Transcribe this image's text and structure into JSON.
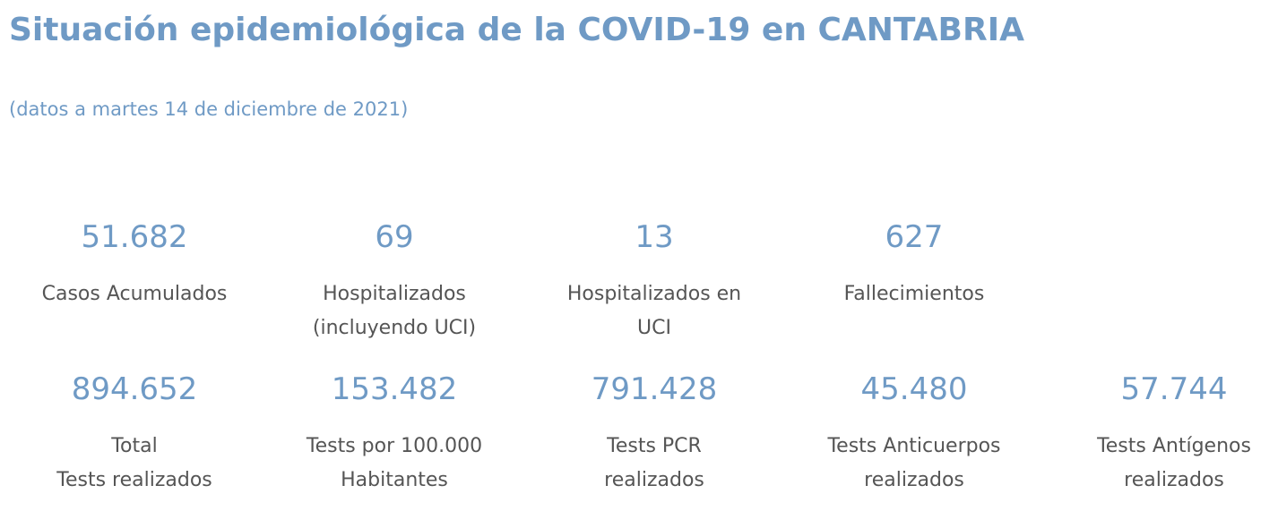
{
  "header": {
    "title": "Situación epidemiológica de la COVID-19 en CANTABRIA",
    "subtitle": "(datos a martes 14 de diciembre de 2021)"
  },
  "stats_row1": [
    {
      "value": "51.682",
      "label_lines": [
        "Casos Acumulados"
      ]
    },
    {
      "value": "69",
      "label_lines": [
        "Hospitalizados",
        "(incluyendo UCI)"
      ]
    },
    {
      "value": "13",
      "label_lines": [
        "Hospitalizados en",
        "UCI"
      ]
    },
    {
      "value": "627",
      "label_lines": [
        "Fallecimientos"
      ]
    }
  ],
  "stats_row2": [
    {
      "value": "894.652",
      "label_lines": [
        "Total",
        "Tests realizados"
      ]
    },
    {
      "value": "153.482",
      "label_lines": [
        "Tests por 100.000",
        "Habitantes"
      ]
    },
    {
      "value": "791.428",
      "label_lines": [
        "Tests PCR",
        "realizados"
      ]
    },
    {
      "value": "45.480",
      "label_lines": [
        "Tests Anticuerpos",
        "realizados"
      ]
    },
    {
      "value": "57.744",
      "label_lines": [
        "Tests Antígenos",
        "realizados"
      ]
    }
  ],
  "colors": {
    "accent": "#6f9ac5",
    "label_text": "#555555",
    "background": "#ffffff"
  }
}
